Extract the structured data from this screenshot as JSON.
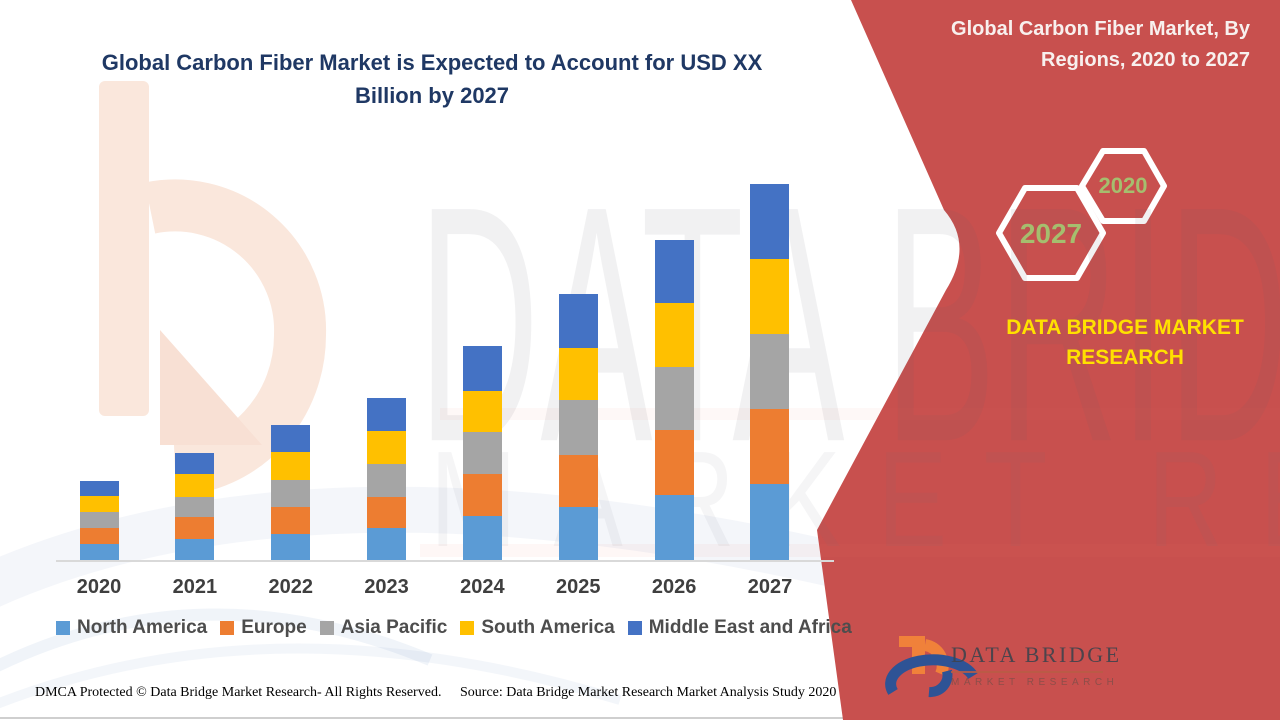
{
  "main": {
    "title": "Global Carbon Fiber Market is Expected to Account for USD XX Billion by 2027",
    "title_color": "#1F3864"
  },
  "chart_data": {
    "type": "bar",
    "stacked": true,
    "title": "Global Carbon Fiber Market is Expected to Account for USD XX Billion by 2027",
    "xlabel": "",
    "ylabel": "",
    "y_axis_shown": false,
    "values_unit": "relative height units (chart shows no y-axis scale; values estimated from pixel heights, 1 unit = 1 px)",
    "legend_position": "bottom",
    "categories": [
      "2020",
      "2021",
      "2022",
      "2023",
      "2024",
      "2025",
      "2026",
      "2027"
    ],
    "series": [
      {
        "name": "North America",
        "color": "#5B9BD5",
        "values": [
          16,
          21,
          26,
          32,
          44,
          53,
          65,
          76
        ]
      },
      {
        "name": "Europe",
        "color": "#ED7D31",
        "values": [
          16,
          22,
          27,
          31,
          42,
          52,
          65,
          75
        ]
      },
      {
        "name": "Asia Pacific",
        "color": "#A5A5A5",
        "values": [
          16,
          20,
          27,
          33,
          42,
          55,
          63,
          75
        ]
      },
      {
        "name": "South America",
        "color": "#FFC000",
        "values": [
          16,
          23,
          28,
          33,
          41,
          52,
          64,
          75
        ]
      },
      {
        "name": "Middle East and Africa",
        "color": "#4472C4",
        "values": [
          15,
          21,
          27,
          33,
          45,
          54,
          63,
          75
        ]
      }
    ],
    "totals": [
      79,
      107,
      135,
      162,
      214,
      266,
      320,
      376
    ]
  },
  "sidebar": {
    "bg_color": "#C8504E",
    "title": "Global Carbon Fiber Market, By Regions, 2020 to 2027",
    "hexagons": [
      {
        "label": "2027"
      },
      {
        "label": "2020"
      }
    ],
    "hexagon_label_color": "#A5BE6E",
    "brand": "DATA BRIDGE MARKET RESEARCH",
    "brand_color": "#FFE100",
    "logo": {
      "name": "DATA BRIDGE",
      "subtitle": "MARKET RESEARCH"
    }
  },
  "watermark": {
    "line1": "DATA BRIDGE",
    "line2": "MARKET RESEARCH"
  },
  "footer": {
    "dmca": "DMCA Protected © Data Bridge Market Research- All Rights Reserved.",
    "source": "Source: Data Bridge Market Research Market Analysis Study 2020"
  }
}
